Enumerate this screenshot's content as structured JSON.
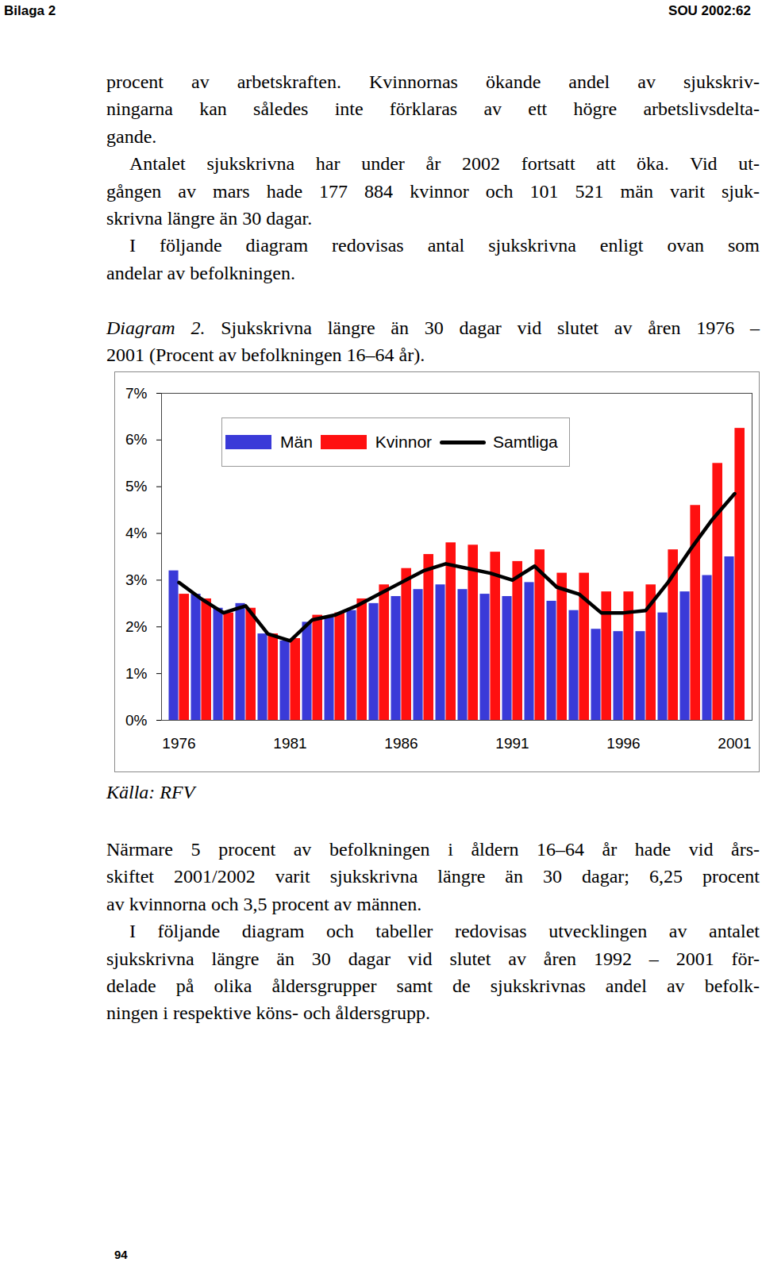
{
  "header": {
    "left": "Bilaga 2",
    "right": "SOU 2002:62"
  },
  "text_before": [
    [
      "procent av arbetskraften. Kvinnornas ökande andel av sjukskriv-",
      "ningarna kan således inte förklaras av ett högre arbetslivsdelta-",
      "gande."
    ],
    [
      "Antalet sjukskrivna har under år 2002 fortsatt att öka. Vid ut-",
      "gången av mars hade 177 884 kvinnor och 101 521 män varit sjuk-",
      "skrivna längre än 30 dagar."
    ],
    [
      "I följande diagram redovisas antal sjukskrivna enligt ovan som",
      "andelar av befolkningen."
    ]
  ],
  "caption": {
    "label": "Diagram 2.",
    "lines": [
      "Sjukskrivna längre än 30 dagar vid slutet av åren 1976 –",
      "2001 (Procent av befolkningen 16–64 år)."
    ]
  },
  "chart_data": {
    "type": "bar",
    "categories": [
      1976,
      null,
      null,
      null,
      null,
      1981,
      null,
      null,
      null,
      null,
      1986,
      null,
      null,
      null,
      null,
      1991,
      null,
      null,
      null,
      null,
      1996,
      null,
      null,
      null,
      null,
      2001
    ],
    "series": [
      {
        "name": "Män",
        "color": "#3a3ad8",
        "values": [
          3.2,
          2.7,
          2.4,
          2.5,
          1.85,
          1.7,
          2.1,
          2.2,
          2.35,
          2.5,
          2.65,
          2.8,
          2.9,
          2.8,
          2.7,
          2.65,
          2.95,
          2.55,
          2.35,
          1.95,
          1.9,
          1.9,
          2.3,
          2.75,
          3.1,
          3.5
        ]
      },
      {
        "name": "Kvinnor",
        "color": "#ff1010",
        "values": [
          2.7,
          2.6,
          2.3,
          2.4,
          1.85,
          1.75,
          2.25,
          2.3,
          2.6,
          2.9,
          3.25,
          3.55,
          3.8,
          3.75,
          3.6,
          3.4,
          3.65,
          3.15,
          3.15,
          2.75,
          2.75,
          2.9,
          3.65,
          4.6,
          5.5,
          6.25
        ]
      },
      {
        "name": "Samtliga",
        "type": "line",
        "color": "#000000",
        "values": [
          2.95,
          2.6,
          2.3,
          2.45,
          1.85,
          1.7,
          2.15,
          2.25,
          2.45,
          2.7,
          2.95,
          3.2,
          3.35,
          3.25,
          3.15,
          3.0,
          3.3,
          2.85,
          2.7,
          2.3,
          2.3,
          2.35,
          2.95,
          3.65,
          4.3,
          4.85
        ]
      }
    ],
    "ylim": [
      0,
      7
    ],
    "yticks": [
      {
        "value": 0,
        "label": "0%"
      },
      {
        "value": 1,
        "label": "1%"
      },
      {
        "value": 2,
        "label": "2%"
      },
      {
        "value": 3,
        "label": "3%"
      },
      {
        "value": 4,
        "label": "4%"
      },
      {
        "value": 5,
        "label": "5%"
      },
      {
        "value": 6,
        "label": "6%"
      },
      {
        "value": 7,
        "label": "7%"
      }
    ],
    "grid": false,
    "legend": "top"
  },
  "source": "Källa: RFV",
  "text_after": [
    [
      "Närmare 5 procent av befolkningen i åldern 16–64 år hade vid års-",
      "skiftet 2001/2002 varit sjukskrivna längre än 30 dagar; 6,25 procent",
      "av kvinnorna och 3,5 procent av männen."
    ],
    [
      "I följande diagram och tabeller redovisas utvecklingen av antalet",
      "sjukskrivna längre än 30 dagar vid slutet av åren 1992 – 2001 för-",
      "delade på olika åldersgrupper samt de sjukskrivnas andel av befolk-",
      "ningen i respektive köns- och åldersgrupp."
    ]
  ],
  "page_number": "94"
}
